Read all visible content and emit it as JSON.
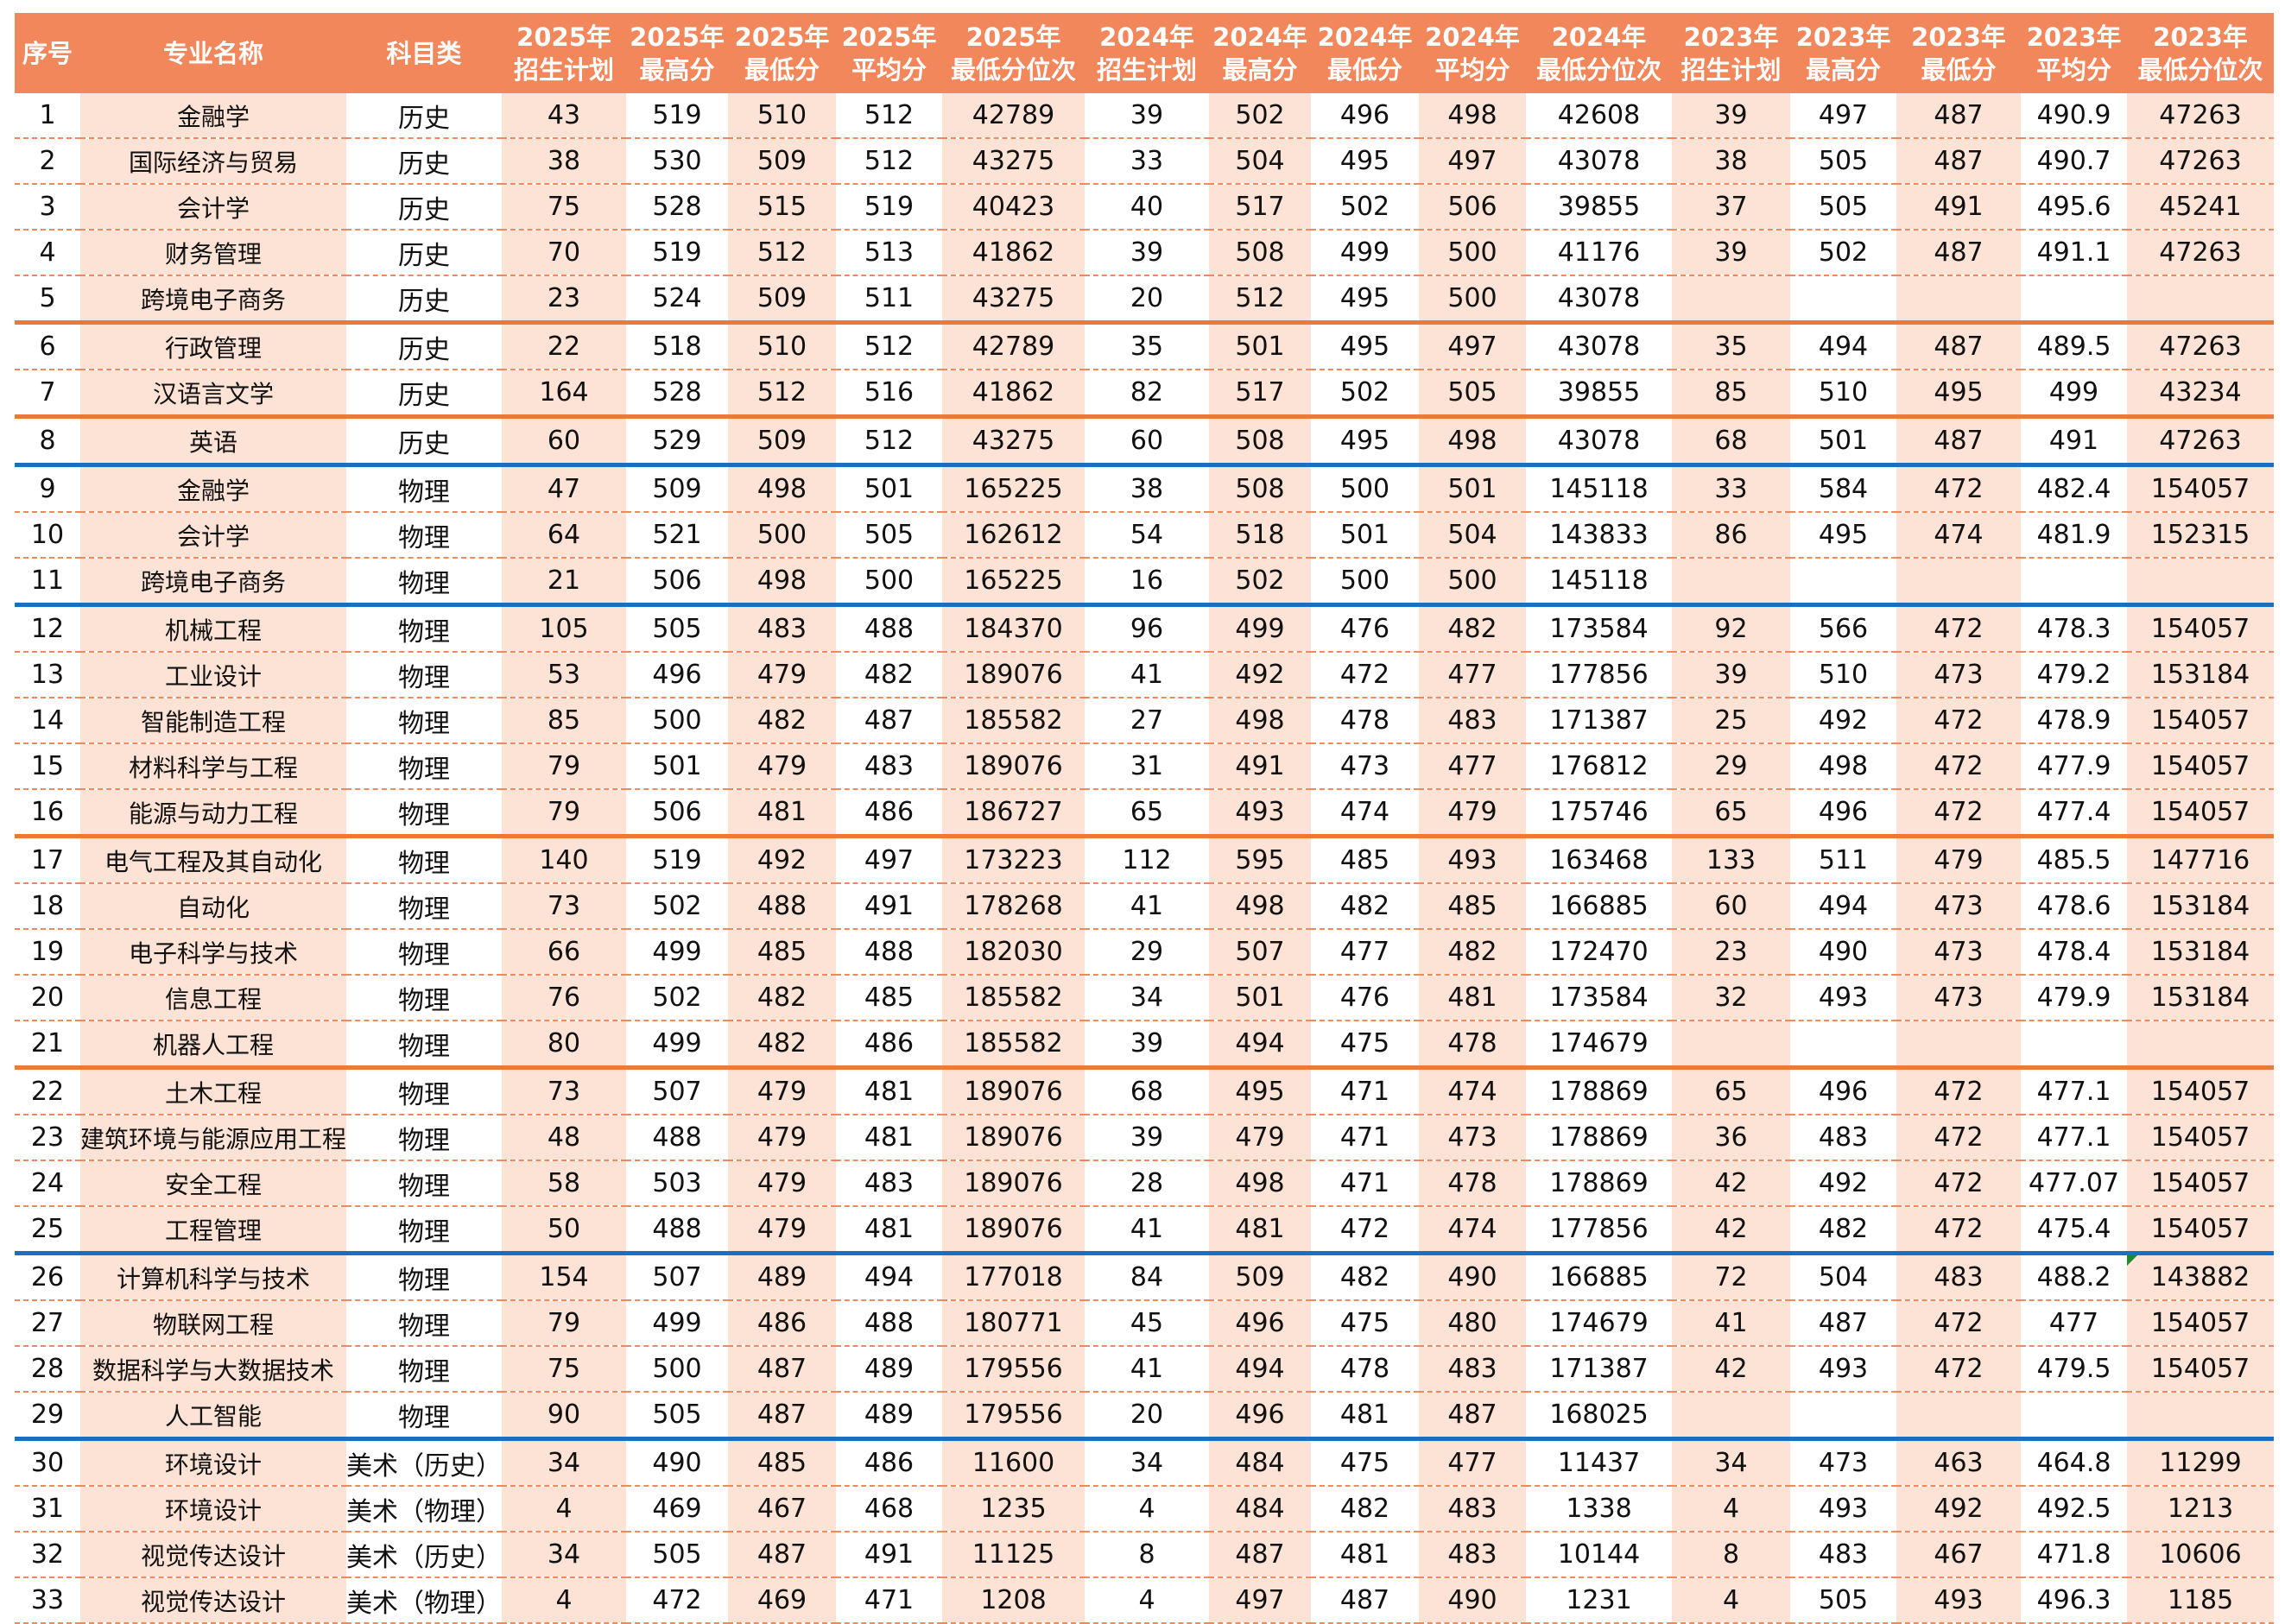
{
  "headers": [
    [
      "序号",
      ""
    ],
    [
      "专业名称",
      ""
    ],
    [
      "科目类",
      ""
    ],
    [
      "2025年",
      "招生计划"
    ],
    [
      "2025年",
      "最高分"
    ],
    [
      "2025年",
      "最低分"
    ],
    [
      "2025年",
      "平均分"
    ],
    [
      "2025年",
      "最低分位次"
    ],
    [
      "2024年",
      "招生计划"
    ],
    [
      "2024年",
      "最高分"
    ],
    [
      "2024年",
      "最低分"
    ],
    [
      "2024年",
      "平均分"
    ],
    [
      "2024年",
      "最低分位次"
    ],
    [
      "2023年",
      "招生计划"
    ],
    [
      "2023年",
      "最高分"
    ],
    [
      "2023年",
      "最低分"
    ],
    [
      "2023年",
      "平均分"
    ],
    [
      "2023年",
      "最低分位次"
    ]
  ],
  "colors": {
    "header_bg": "#f2875c",
    "shade": "#fde3d6",
    "separator_orange": "#ea7a3a",
    "separator_blue": "#1a6fc0"
  },
  "rows": [
    [
      "1",
      "金融学",
      "历史",
      "43",
      "519",
      "510",
      "512",
      "42789",
      "39",
      "502",
      "496",
      "498",
      "42608",
      "39",
      "497",
      "487",
      "490.9",
      "47263"
    ],
    [
      "2",
      "国际经济与贸易",
      "历史",
      "38",
      "530",
      "509",
      "512",
      "43275",
      "33",
      "504",
      "495",
      "497",
      "43078",
      "38",
      "505",
      "487",
      "490.7",
      "47263"
    ],
    [
      "3",
      "会计学",
      "历史",
      "75",
      "528",
      "515",
      "519",
      "40423",
      "40",
      "517",
      "502",
      "506",
      "39855",
      "37",
      "505",
      "491",
      "495.6",
      "45241"
    ],
    [
      "4",
      "财务管理",
      "历史",
      "70",
      "519",
      "512",
      "513",
      "41862",
      "39",
      "508",
      "499",
      "500",
      "41176",
      "39",
      "502",
      "487",
      "491.1",
      "47263"
    ],
    [
      "5",
      "跨境电子商务",
      "历史",
      "23",
      "524",
      "509",
      "511",
      "43275",
      "20",
      "512",
      "495",
      "500",
      "43078",
      "",
      "",
      "",
      "",
      ""
    ],
    [
      "6",
      "行政管理",
      "历史",
      "22",
      "518",
      "510",
      "512",
      "42789",
      "35",
      "501",
      "495",
      "497",
      "43078",
      "35",
      "494",
      "487",
      "489.5",
      "47263"
    ],
    [
      "7",
      "汉语言文学",
      "历史",
      "164",
      "528",
      "512",
      "516",
      "41862",
      "82",
      "517",
      "502",
      "505",
      "39855",
      "85",
      "510",
      "495",
      "499",
      "43234"
    ],
    [
      "8",
      "英语",
      "历史",
      "60",
      "529",
      "509",
      "512",
      "43275",
      "60",
      "508",
      "495",
      "498",
      "43078",
      "68",
      "501",
      "487",
      "491",
      "47263"
    ],
    [
      "9",
      "金融学",
      "物理",
      "47",
      "509",
      "498",
      "501",
      "165225",
      "38",
      "508",
      "500",
      "501",
      "145118",
      "33",
      "584",
      "472",
      "482.4",
      "154057"
    ],
    [
      "10",
      "会计学",
      "物理",
      "64",
      "521",
      "500",
      "505",
      "162612",
      "54",
      "518",
      "501",
      "504",
      "143833",
      "86",
      "495",
      "474",
      "481.9",
      "152315"
    ],
    [
      "11",
      "跨境电子商务",
      "物理",
      "21",
      "506",
      "498",
      "500",
      "165225",
      "16",
      "502",
      "500",
      "500",
      "145118",
      "",
      "",
      "",
      "",
      ""
    ],
    [
      "12",
      "机械工程",
      "物理",
      "105",
      "505",
      "483",
      "488",
      "184370",
      "96",
      "499",
      "476",
      "482",
      "173584",
      "92",
      "566",
      "472",
      "478.3",
      "154057"
    ],
    [
      "13",
      "工业设计",
      "物理",
      "53",
      "496",
      "479",
      "482",
      "189076",
      "41",
      "492",
      "472",
      "477",
      "177856",
      "39",
      "510",
      "473",
      "479.2",
      "153184"
    ],
    [
      "14",
      "智能制造工程",
      "物理",
      "85",
      "500",
      "482",
      "487",
      "185582",
      "27",
      "498",
      "478",
      "483",
      "171387",
      "25",
      "492",
      "472",
      "478.9",
      "154057"
    ],
    [
      "15",
      "材料科学与工程",
      "物理",
      "79",
      "501",
      "479",
      "483",
      "189076",
      "31",
      "491",
      "473",
      "477",
      "176812",
      "29",
      "498",
      "472",
      "477.9",
      "154057"
    ],
    [
      "16",
      "能源与动力工程",
      "物理",
      "79",
      "506",
      "481",
      "486",
      "186727",
      "65",
      "493",
      "474",
      "479",
      "175746",
      "65",
      "496",
      "472",
      "477.4",
      "154057"
    ],
    [
      "17",
      "电气工程及其自动化",
      "物理",
      "140",
      "519",
      "492",
      "497",
      "173223",
      "112",
      "595",
      "485",
      "493",
      "163468",
      "133",
      "511",
      "479",
      "485.5",
      "147716"
    ],
    [
      "18",
      "自动化",
      "物理",
      "73",
      "502",
      "488",
      "491",
      "178268",
      "41",
      "498",
      "482",
      "485",
      "166885",
      "60",
      "494",
      "473",
      "478.6",
      "153184"
    ],
    [
      "19",
      "电子科学与技术",
      "物理",
      "66",
      "499",
      "485",
      "488",
      "182030",
      "29",
      "507",
      "477",
      "482",
      "172470",
      "23",
      "490",
      "473",
      "478.4",
      "153184"
    ],
    [
      "20",
      "信息工程",
      "物理",
      "76",
      "502",
      "482",
      "485",
      "185582",
      "34",
      "501",
      "476",
      "481",
      "173584",
      "32",
      "493",
      "473",
      "479.9",
      "153184"
    ],
    [
      "21",
      "机器人工程",
      "物理",
      "80",
      "499",
      "482",
      "486",
      "185582",
      "39",
      "494",
      "475",
      "478",
      "174679",
      "",
      "",
      "",
      "",
      ""
    ],
    [
      "22",
      "土木工程",
      "物理",
      "73",
      "507",
      "479",
      "481",
      "189076",
      "68",
      "495",
      "471",
      "474",
      "178869",
      "65",
      "496",
      "472",
      "477.1",
      "154057"
    ],
    [
      "23",
      "建筑环境与能源应用工程",
      "物理",
      "48",
      "488",
      "479",
      "481",
      "189076",
      "39",
      "479",
      "471",
      "473",
      "178869",
      "36",
      "483",
      "472",
      "477.1",
      "154057"
    ],
    [
      "24",
      "安全工程",
      "物理",
      "58",
      "503",
      "479",
      "483",
      "189076",
      "28",
      "498",
      "471",
      "478",
      "178869",
      "42",
      "492",
      "472",
      "477.07",
      "154057"
    ],
    [
      "25",
      "工程管理",
      "物理",
      "50",
      "488",
      "479",
      "481",
      "189076",
      "41",
      "481",
      "472",
      "474",
      "177856",
      "42",
      "482",
      "472",
      "475.4",
      "154057"
    ],
    [
      "26",
      "计算机科学与技术",
      "物理",
      "154",
      "507",
      "489",
      "494",
      "177018",
      "84",
      "509",
      "482",
      "490",
      "166885",
      "72",
      "504",
      "483",
      "488.2",
      "143882"
    ],
    [
      "27",
      "物联网工程",
      "物理",
      "79",
      "499",
      "486",
      "488",
      "180771",
      "45",
      "496",
      "475",
      "480",
      "174679",
      "41",
      "487",
      "472",
      "477",
      "154057"
    ],
    [
      "28",
      "数据科学与大数据技术",
      "物理",
      "75",
      "500",
      "487",
      "489",
      "179556",
      "41",
      "494",
      "478",
      "483",
      "171387",
      "42",
      "493",
      "472",
      "479.5",
      "154057"
    ],
    [
      "29",
      "人工智能",
      "物理",
      "90",
      "505",
      "487",
      "489",
      "179556",
      "20",
      "496",
      "481",
      "487",
      "168025",
      "",
      "",
      "",
      "",
      ""
    ],
    [
      "30",
      "环境设计",
      "美术（历史）",
      "34",
      "490",
      "485",
      "486",
      "11600",
      "34",
      "484",
      "475",
      "477",
      "11437",
      "34",
      "473",
      "463",
      "464.8",
      "11299"
    ],
    [
      "31",
      "环境设计",
      "美术（物理）",
      "4",
      "469",
      "467",
      "468",
      "1235",
      "4",
      "484",
      "482",
      "483",
      "1338",
      "4",
      "493",
      "492",
      "492.5",
      "1213"
    ],
    [
      "32",
      "视觉传达设计",
      "美术（历史）",
      "34",
      "505",
      "487",
      "491",
      "11125",
      "8",
      "487",
      "481",
      "483",
      "10144",
      "8",
      "483",
      "467",
      "471.8",
      "10606"
    ],
    [
      "33",
      "视觉传达设计",
      "美术（物理）",
      "4",
      "472",
      "469",
      "471",
      "1208",
      "4",
      "497",
      "487",
      "490",
      "1231",
      "4",
      "505",
      "493",
      "496.3",
      "1185"
    ]
  ]
}
